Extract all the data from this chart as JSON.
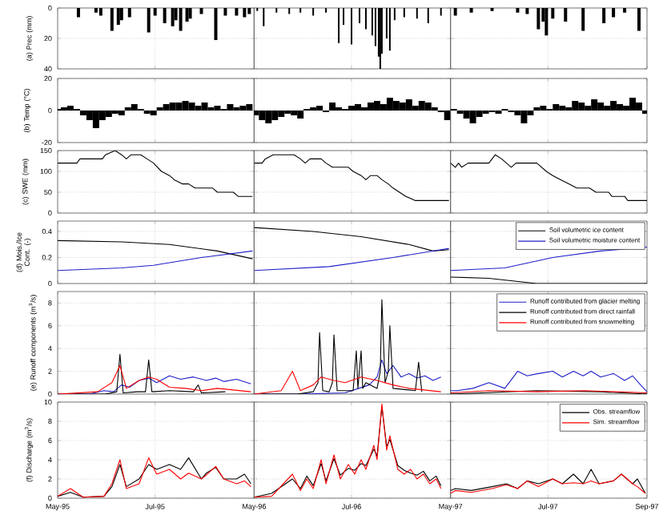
{
  "chart_data": [
    {
      "type": "bar",
      "ylabel": "(a) Prec (mm)",
      "color": "#000000",
      "grid": true,
      "tick_labels": "y",
      "xlim": [
        "1995-05-01",
        "1995-09-01"
      ],
      "xticks": [
        {
          "value": "1995-05-01",
          "label": null
        },
        {
          "value": "1995-07-01",
          "label": null
        }
      ],
      "ylim": [
        40,
        0
      ],
      "yticks": [
        0,
        20,
        40
      ],
      "x": [
        "1995-05-14",
        "1995-05-25",
        "1995-05-28",
        "1995-06-04",
        "1995-06-08",
        "1995-06-10",
        "1995-06-15",
        "1995-06-27",
        "1995-07-01",
        "1995-07-07",
        "1995-07-12",
        "1995-07-14",
        "1995-07-17",
        "1995-07-21",
        "1995-07-23",
        "1995-07-30",
        "1995-08-08",
        "1995-08-14",
        "1995-08-21",
        "1995-08-26",
        "1995-08-29"
      ],
      "values": [
        6,
        3,
        5,
        15,
        11,
        8,
        6,
        16,
        5,
        10,
        12,
        8,
        15,
        9,
        7,
        4,
        21,
        5,
        5,
        6,
        4
      ]
    },
    {
      "type": "bar",
      "color": "#000000",
      "grid": true,
      "tick_labels": false,
      "xlim": [
        "1996-05-01",
        "1996-09-01"
      ],
      "xticks": [
        {
          "value": "1996-05-01",
          "label": null
        },
        {
          "value": "1996-07-01",
          "label": null
        }
      ],
      "ylim": [
        40,
        0
      ],
      "yticks": [
        0,
        20,
        40
      ],
      "x": [
        "1996-05-03",
        "1996-05-07",
        "1996-05-15",
        "1996-05-23",
        "1996-05-30",
        "1996-06-07",
        "1996-06-15",
        "1996-06-23",
        "1996-06-26",
        "1996-07-01",
        "1996-07-06",
        "1996-07-10",
        "1996-07-14",
        "1996-07-16",
        "1996-07-18",
        "1996-07-19",
        "1996-07-20",
        "1996-07-23",
        "1996-07-25",
        "1996-07-28",
        "1996-08-03",
        "1996-08-11",
        "1996-08-18",
        "1996-08-26"
      ],
      "values": [
        2,
        12,
        3,
        4,
        3,
        5,
        3,
        23,
        11,
        24,
        10,
        14,
        18,
        25,
        32,
        40,
        30,
        20,
        28,
        8,
        6,
        7,
        10,
        5
      ]
    },
    {
      "type": "bar",
      "color": "#000000",
      "grid": true,
      "tick_labels": false,
      "xlim": [
        "1997-05-01",
        "1997-09-01"
      ],
      "xticks": [
        {
          "value": "1997-05-01",
          "label": null
        },
        {
          "value": "1997-07-01",
          "label": null
        },
        {
          "value": "1997-09-01",
          "label": null
        }
      ],
      "ylim": [
        40,
        0
      ],
      "yticks": [
        0,
        20,
        40
      ],
      "x": [
        "1997-05-04",
        "1997-05-14",
        "1997-05-27",
        "1997-06-12",
        "1997-06-18",
        "1997-06-25",
        "1997-06-28",
        "1997-06-30",
        "1997-07-04",
        "1997-07-12",
        "1997-07-23",
        "1997-08-05",
        "1997-08-11",
        "1997-08-18",
        "1997-08-27"
      ],
      "values": [
        5,
        3,
        2,
        3,
        4,
        14,
        9,
        18,
        7,
        9,
        15,
        10,
        6,
        3,
        15
      ]
    },
    {
      "type": "bar",
      "ylabel": "(b) Temp (°C)",
      "color": "#000000",
      "grid": true,
      "tick_labels": "y",
      "xlim": [
        "1995-05-01",
        "1995-09-01"
      ],
      "xticks": [
        {
          "value": "1995-05-01",
          "label": null
        },
        {
          "value": "1995-07-01",
          "label": null
        }
      ],
      "ylim": [
        -20,
        20
      ],
      "yticks": [
        -20,
        0,
        20
      ],
      "x": [
        "1995-05-01",
        "1995-05-05",
        "1995-05-09",
        "1995-05-13",
        "1995-05-17",
        "1995-05-21",
        "1995-05-25",
        "1995-05-29",
        "1995-06-02",
        "1995-06-06",
        "1995-06-10",
        "1995-06-14",
        "1995-06-18",
        "1995-06-22",
        "1995-06-26",
        "1995-06-30",
        "1995-07-04",
        "1995-07-08",
        "1995-07-12",
        "1995-07-16",
        "1995-07-20",
        "1995-07-24",
        "1995-07-28",
        "1995-08-01",
        "1995-08-05",
        "1995-08-09",
        "1995-08-13",
        "1995-08-17",
        "1995-08-21",
        "1995-08-25",
        "1995-08-29"
      ],
      "values": [
        1,
        2,
        3,
        1,
        -3,
        -6,
        -11,
        -6,
        -4,
        -2,
        -3,
        2,
        4,
        1,
        -2,
        -3,
        2,
        4,
        5,
        5,
        6,
        5,
        3,
        5,
        2,
        3,
        1,
        4,
        2,
        3,
        4
      ]
    },
    {
      "type": "bar",
      "color": "#000000",
      "grid": true,
      "tick_labels": false,
      "xlim": [
        "1996-05-01",
        "1996-09-01"
      ],
      "xticks": [
        {
          "value": "1996-05-01",
          "label": null
        },
        {
          "value": "1996-07-01",
          "label": null
        }
      ],
      "ylim": [
        -20,
        20
      ],
      "yticks": [
        -20,
        0,
        20
      ],
      "x": [
        "1996-05-02",
        "1996-05-06",
        "1996-05-10",
        "1996-05-14",
        "1996-05-18",
        "1996-05-22",
        "1996-05-26",
        "1996-05-30",
        "1996-06-03",
        "1996-06-07",
        "1996-06-11",
        "1996-06-15",
        "1996-06-19",
        "1996-06-23",
        "1996-06-27",
        "1996-07-01",
        "1996-07-05",
        "1996-07-09",
        "1996-07-13",
        "1996-07-17",
        "1996-07-21",
        "1996-07-25",
        "1996-07-29",
        "1996-08-02",
        "1996-08-06",
        "1996-08-10",
        "1996-08-14",
        "1996-08-18",
        "1996-08-22",
        "1996-08-26",
        "1996-08-30"
      ],
      "values": [
        -3,
        -6,
        -8,
        -6,
        -4,
        -2,
        -3,
        -5,
        1,
        2,
        3,
        -1,
        5,
        2,
        1,
        3,
        4,
        2,
        5,
        6,
        4,
        8,
        6,
        5,
        7,
        3,
        6,
        5,
        2,
        -1,
        -6
      ]
    },
    {
      "type": "bar",
      "color": "#000000",
      "grid": true,
      "tick_labels": false,
      "xlim": [
        "1997-05-01",
        "1997-09-01"
      ],
      "xticks": [
        {
          "value": "1997-05-01",
          "label": null
        },
        {
          "value": "1997-07-01",
          "label": null
        },
        {
          "value": "1997-09-01",
          "label": null
        }
      ],
      "ylim": [
        -20,
        20
      ],
      "yticks": [
        -20,
        0,
        20
      ],
      "x": [
        "1997-05-03",
        "1997-05-07",
        "1997-05-11",
        "1997-05-15",
        "1997-05-19",
        "1997-05-23",
        "1997-05-27",
        "1997-05-31",
        "1997-06-04",
        "1997-06-08",
        "1997-06-12",
        "1997-06-16",
        "1997-06-20",
        "1997-06-24",
        "1997-06-28",
        "1997-07-02",
        "1997-07-06",
        "1997-07-10",
        "1997-07-14",
        "1997-07-18",
        "1997-07-22",
        "1997-07-26",
        "1997-07-30",
        "1997-08-03",
        "1997-08-07",
        "1997-08-11",
        "1997-08-15",
        "1997-08-19",
        "1997-08-23",
        "1997-08-27",
        "1997-08-31"
      ],
      "values": [
        1,
        -2,
        -5,
        -8,
        -4,
        -2,
        -1,
        -2,
        1,
        -1,
        -3,
        -8,
        -3,
        2,
        3,
        1,
        4,
        3,
        2,
        6,
        5,
        3,
        7,
        5,
        3,
        6,
        4,
        3,
        8,
        5,
        -2
      ]
    },
    {
      "type": "line",
      "ylabel": "(c) SWE (mm)",
      "grid": true,
      "tick_labels": "y",
      "xlim": [
        "1995-05-01",
        "1995-09-01"
      ],
      "xticks": [
        {
          "value": "1995-05-01",
          "label": null
        },
        {
          "value": "1995-07-01",
          "label": null
        }
      ],
      "ylim": [
        0,
        150
      ],
      "yticks": [
        0,
        50,
        100,
        150
      ],
      "series": [
        {
          "color": "#000000",
          "x": [
            "1995-05-01",
            "1995-05-13",
            "1995-05-15",
            "1995-05-29",
            "1995-05-31",
            "1995-06-06",
            "1995-06-10",
            "1995-06-13",
            "1995-06-16",
            "1995-06-22",
            "1995-06-26",
            "1995-06-30",
            "1995-07-05",
            "1995-07-10",
            "1995-07-13",
            "1995-07-18",
            "1995-07-22",
            "1995-07-26",
            "1995-08-06",
            "1995-08-09",
            "1995-08-19",
            "1995-08-22",
            "1995-08-31"
          ],
          "values": [
            120,
            120,
            130,
            130,
            140,
            150,
            140,
            130,
            140,
            140,
            130,
            120,
            100,
            90,
            80,
            70,
            70,
            60,
            60,
            50,
            50,
            40,
            40
          ]
        }
      ]
    },
    {
      "type": "line",
      "grid": true,
      "tick_labels": false,
      "xlim": [
        "1996-05-01",
        "1996-09-01"
      ],
      "xticks": [
        {
          "value": "1996-05-01",
          "label": null
        },
        {
          "value": "1996-07-01",
          "label": null
        }
      ],
      "ylim": [
        0,
        150
      ],
      "yticks": [
        0,
        50,
        100,
        150
      ],
      "series": [
        {
          "color": "#000000",
          "x": [
            "1996-05-01",
            "1996-05-06",
            "1996-05-08",
            "1996-05-13",
            "1996-05-26",
            "1996-05-30",
            "1996-06-02",
            "1996-06-05",
            "1996-06-12",
            "1996-06-15",
            "1996-06-19",
            "1996-06-29",
            "1996-07-02",
            "1996-07-07",
            "1996-07-10",
            "1996-07-13",
            "1996-07-17",
            "1996-07-20",
            "1996-07-24",
            "1996-07-27",
            "1996-07-31",
            "1996-08-04",
            "1996-08-10",
            "1996-08-31"
          ],
          "values": [
            120,
            120,
            130,
            140,
            140,
            130,
            120,
            130,
            130,
            120,
            110,
            110,
            100,
            90,
            80,
            90,
            90,
            80,
            70,
            60,
            50,
            40,
            30,
            30
          ]
        }
      ]
    },
    {
      "type": "line",
      "grid": true,
      "tick_labels": false,
      "xlim": [
        "1997-05-01",
        "1997-09-01"
      ],
      "xticks": [
        {
          "value": "1997-05-01",
          "label": null
        },
        {
          "value": "1997-07-01",
          "label": null
        },
        {
          "value": "1997-09-01",
          "label": null
        }
      ],
      "ylim": [
        0,
        150
      ],
      "yticks": [
        0,
        50,
        100,
        150
      ],
      "series": [
        {
          "color": "#000000",
          "x": [
            "1997-05-01",
            "1997-05-04",
            "1997-05-06",
            "1997-05-08",
            "1997-05-12",
            "1997-05-25",
            "1997-05-29",
            "1997-06-02",
            "1997-06-05",
            "1997-06-08",
            "1997-06-11",
            "1997-06-24",
            "1997-06-27",
            "1997-06-30",
            "1997-07-04",
            "1997-07-09",
            "1997-07-14",
            "1997-07-19",
            "1997-07-27",
            "1997-07-31",
            "1997-08-08",
            "1997-08-10",
            "1997-08-18",
            "1997-08-20",
            "1997-09-01"
          ],
          "values": [
            120,
            110,
            120,
            110,
            120,
            120,
            140,
            130,
            120,
            110,
            120,
            120,
            110,
            100,
            90,
            80,
            70,
            60,
            60,
            50,
            50,
            40,
            40,
            30,
            30
          ]
        }
      ]
    },
    {
      "type": "line",
      "ylabel": "(d) Mois./Ice Cont. (-)",
      "grid": true,
      "tick_labels": "y",
      "xlim": [
        "1995-05-01",
        "1995-09-01"
      ],
      "xticks": [
        {
          "value": "1995-05-01",
          "label": null
        },
        {
          "value": "1995-07-01",
          "label": null
        }
      ],
      "ylim": [
        0,
        0.48
      ],
      "yticks": [
        0,
        0.2,
        0.4
      ],
      "series": [
        {
          "color": "#000000",
          "x": [
            "1995-05-01",
            "1995-06-10",
            "1995-07-10",
            "1995-08-09",
            "1995-08-31"
          ],
          "values": [
            0.33,
            0.32,
            0.3,
            0.25,
            0.19
          ]
        },
        {
          "color": "#1f1fc8",
          "x": [
            "1995-05-01",
            "1995-06-10",
            "1995-06-30",
            "1995-07-30",
            "1995-08-31"
          ],
          "values": [
            0.1,
            0.12,
            0.14,
            0.2,
            0.25
          ]
        }
      ]
    },
    {
      "type": "line",
      "grid": true,
      "tick_labels": false,
      "xlim": [
        "1996-05-01",
        "1996-09-01"
      ],
      "xticks": [
        {
          "value": "1996-05-01",
          "label": null
        },
        {
          "value": "1996-07-01",
          "label": null
        }
      ],
      "ylim": [
        0,
        0.48
      ],
      "yticks": [
        0,
        0.2,
        0.4
      ],
      "series": [
        {
          "color": "#000000",
          "x": [
            "1996-05-01",
            "1996-06-07",
            "1996-07-07",
            "1996-08-06",
            "1996-08-21",
            "1996-08-31"
          ],
          "values": [
            0.43,
            0.4,
            0.36,
            0.3,
            0.25,
            0.26
          ]
        },
        {
          "color": "#1f1fc8",
          "x": [
            "1996-05-01",
            "1996-06-17",
            "1996-07-27",
            "1996-08-26",
            "1996-08-31"
          ],
          "values": [
            0.1,
            0.13,
            0.2,
            0.26,
            0.27
          ]
        }
      ]
    },
    {
      "type": "line",
      "grid": true,
      "tick_labels": false,
      "legend": "top right",
      "xlim": [
        "1997-05-01",
        "1997-09-01"
      ],
      "xticks": [
        {
          "value": "1997-05-01",
          "label": null
        },
        {
          "value": "1997-07-01",
          "label": null
        },
        {
          "value": "1997-09-01",
          "label": null
        }
      ],
      "ylim": [
        0,
        0.48
      ],
      "yticks": [
        0,
        0.2,
        0.4
      ],
      "series": [
        {
          "name": "Soil volumetric ice content",
          "color": "#000000",
          "x": [
            "1997-05-01",
            "1997-05-25",
            "1997-06-24",
            "1997-09-01"
          ],
          "values": [
            0.05,
            0.04,
            0,
            0
          ]
        },
        {
          "name": "Soil volumetric moisture content",
          "color": "#1f1fc8",
          "x": [
            "1997-05-01",
            "1997-06-04",
            "1997-07-04",
            "1997-08-03",
            "1997-09-01"
          ],
          "values": [
            0.1,
            0.12,
            0.2,
            0.25,
            0.28
          ]
        }
      ]
    },
    {
      "type": "line",
      "ylabel": "(e) Runoff components (m$^{3}$/s)",
      "grid": true,
      "tick_labels": "y",
      "xlim": [
        "1995-05-01",
        "1995-09-01"
      ],
      "xticks": [
        {
          "value": "1995-05-01",
          "label": null
        },
        {
          "value": "1995-07-01",
          "label": null
        }
      ],
      "ylim": [
        0,
        9
      ],
      "yticks": [
        0,
        2,
        4,
        6,
        8
      ],
      "series": [
        {
          "color": "#1f1fc8",
          "x": [
            "1995-05-01",
            "1995-05-21",
            "1995-05-30",
            "1995-06-05",
            "1995-06-10",
            "1995-06-15",
            "1995-06-21",
            "1995-06-27",
            "1995-07-02",
            "1995-07-10",
            "1995-07-17",
            "1995-07-25",
            "1995-08-02",
            "1995-08-08",
            "1995-08-13",
            "1995-08-21",
            "1995-08-30"
          ],
          "values": [
            0,
            0,
            0.3,
            0.2,
            0.8,
            0.6,
            1.2,
            1.4,
            1.0,
            1.6,
            1.3,
            1.5,
            1.2,
            1.4,
            1.1,
            1.3,
            0.9
          ]
        },
        {
          "color": "#000000",
          "x": [
            "1995-05-01",
            "1995-05-31",
            "1995-06-07",
            "1995-06-09",
            "1995-06-11",
            "1995-06-20",
            "1995-06-25",
            "1995-06-27",
            "1995-06-29",
            "1995-07-10",
            "1995-07-25",
            "1995-07-28",
            "1995-07-30",
            "1995-08-14"
          ],
          "values": [
            0,
            0,
            0.2,
            3.5,
            0.1,
            0.2,
            0.2,
            3.0,
            0.2,
            0.3,
            0.2,
            0.8,
            0.1,
            0.2
          ]
        },
        {
          "color": "#ff0000",
          "x": [
            "1995-05-01",
            "1995-05-26",
            "1995-06-04",
            "1995-06-09",
            "1995-06-13",
            "1995-06-21",
            "1995-06-27",
            "1995-07-02",
            "1995-07-10",
            "1995-07-20",
            "1995-07-30",
            "1995-08-09",
            "1995-08-30"
          ],
          "values": [
            0,
            0.2,
            1.0,
            2.5,
            0.5,
            1.2,
            1.5,
            1.3,
            0.6,
            0.5,
            0.3,
            0.5,
            0.2
          ]
        }
      ]
    },
    {
      "type": "line",
      "grid": true,
      "tick_labels": false,
      "xlim": [
        "1996-05-01",
        "1996-09-01"
      ],
      "xticks": [
        {
          "value": "1996-05-01",
          "label": null
        },
        {
          "value": "1996-07-01",
          "label": null
        }
      ],
      "ylim": [
        0,
        9
      ],
      "yticks": [
        0,
        2,
        4,
        6,
        8
      ],
      "series": [
        {
          "color": "#1f1fc8",
          "x": [
            "1996-05-01",
            "1996-05-28",
            "1996-06-27",
            "1996-07-12",
            "1996-07-17",
            "1996-07-20",
            "1996-07-23",
            "1996-07-27",
            "1996-08-01",
            "1996-08-06",
            "1996-08-11",
            "1996-08-16",
            "1996-08-21",
            "1996-08-26"
          ],
          "values": [
            0,
            0,
            0.1,
            0.8,
            1.5,
            3.0,
            1.8,
            2.5,
            1.5,
            1.8,
            1.4,
            1.6,
            1.2,
            1.5
          ]
        },
        {
          "color": "#000000",
          "x": [
            "1996-05-01",
            "1996-05-28",
            "1996-06-07",
            "1996-06-10",
            "1996-06-11",
            "1996-06-13",
            "1996-06-17",
            "1996-06-19",
            "1996-06-20",
            "1996-06-22",
            "1996-07-02",
            "1996-07-04",
            "1996-07-05",
            "1996-07-07",
            "1996-07-08",
            "1996-07-10",
            "1996-07-17",
            "1996-07-19",
            "1996-07-20",
            "1996-07-22",
            "1996-07-24",
            "1996-07-25",
            "1996-07-27",
            "1996-08-10",
            "1996-08-12",
            "1996-08-14"
          ],
          "values": [
            0,
            0,
            0.2,
            1,
            5.4,
            0.3,
            0.2,
            1,
            5.2,
            0.3,
            0.3,
            3.8,
            0.5,
            3.8,
            0.5,
            1.0,
            0.5,
            2,
            8.3,
            1.0,
            2,
            6.0,
            0.5,
            0.3,
            2.8,
            0.2
          ]
        },
        {
          "color": "#ff0000",
          "x": [
            "1996-05-01",
            "1996-05-18",
            "1996-05-25",
            "1996-05-30",
            "1996-06-07",
            "1996-06-12",
            "1996-06-20",
            "1996-06-27",
            "1996-07-07",
            "1996-07-17",
            "1996-07-27",
            "1996-08-06",
            "1996-08-26"
          ],
          "values": [
            0,
            0.3,
            2.0,
            0.3,
            0.8,
            1.5,
            1.2,
            1.0,
            1.5,
            1.2,
            0.8,
            0.5,
            0.2
          ]
        }
      ]
    },
    {
      "type": "line",
      "grid": true,
      "tick_labels": false,
      "legend": "top right",
      "xlim": [
        "1997-05-01",
        "1997-09-01"
      ],
      "xticks": [
        {
          "value": "1997-05-01",
          "label": null
        },
        {
          "value": "1997-07-01",
          "label": null
        },
        {
          "value": "1997-09-01",
          "label": null
        }
      ],
      "ylim": [
        0,
        9
      ],
      "yticks": [
        0,
        2,
        4,
        6,
        8
      ],
      "series": [
        {
          "name": "Runoff contributed from glacier melting",
          "color": "#1f1fc8",
          "x": [
            "1997-05-01",
            "1997-05-05",
            "1997-05-15",
            "1997-05-25",
            "1997-06-04",
            "1997-06-12",
            "1997-06-18",
            "1997-06-25",
            "1997-07-04",
            "1997-07-10",
            "1997-07-17",
            "1997-07-23",
            "1997-07-28",
            "1997-08-03",
            "1997-08-11",
            "1997-08-18",
            "1997-08-23",
            "1997-08-28",
            "1997-09-01"
          ],
          "values": [
            0.3,
            0.3,
            0.5,
            1.0,
            0.5,
            2.0,
            1.6,
            1.8,
            2.0,
            1.5,
            2.0,
            1.6,
            2.0,
            1.5,
            1.8,
            1.2,
            1.6,
            0.8,
            0.2
          ]
        },
        {
          "name": "Runoff contributed from direct rainfall",
          "color": "#000000",
          "x": [
            "1997-05-01",
            "1997-06-24",
            "1997-08-03",
            "1997-09-01"
          ],
          "values": [
            0,
            0.3,
            0.2,
            0
          ]
        },
        {
          "name": "Runoff contributed from snowmelting",
          "color": "#ff0000",
          "x": [
            "1997-05-01",
            "1997-05-25",
            "1997-06-24",
            "1997-07-24",
            "1997-09-01"
          ],
          "values": [
            0.1,
            0.3,
            0.2,
            0.3,
            0.1
          ]
        }
      ]
    },
    {
      "type": "line",
      "ylabel": "(f) Discharge (m$^{3}$/s)",
      "grid": true,
      "xlim": [
        "1995-05-01",
        "1995-09-01"
      ],
      "xticks": [
        {
          "value": "1995-05-01",
          "label": "May-95"
        },
        {
          "value": "1995-07-01",
          "label": "Jul-95"
        }
      ],
      "ylim": [
        0,
        10
      ],
      "yticks": [
        0,
        2,
        4,
        6,
        8,
        10
      ],
      "x": [
        "1995-05-01",
        "1995-05-09",
        "1995-05-17",
        "1995-05-30",
        "1995-06-04",
        "1995-06-09",
        "1995-06-13",
        "1995-06-21",
        "1995-06-27",
        "1995-07-02",
        "1995-07-10",
        "1995-07-17",
        "1995-07-22",
        "1995-07-30",
        "1995-08-02",
        "1995-08-08",
        "1995-08-13",
        "1995-08-21",
        "1995-08-26",
        "1995-08-30"
      ],
      "series": [
        {
          "color": "#000000",
          "values": [
            0.2,
            0.6,
            0.1,
            0.2,
            1.2,
            3.5,
            1.2,
            2.0,
            3.5,
            3.0,
            3.5,
            3.0,
            4.2,
            2.0,
            2.6,
            3.2,
            2.0,
            2.0,
            2.5,
            1.5
          ]
        },
        {
          "color": "#ff0000",
          "values": [
            0.2,
            1.0,
            0.1,
            0.2,
            1.5,
            4.0,
            1.0,
            1.5,
            4.2,
            2.5,
            3.0,
            2.0,
            2.6,
            2.0,
            2.4,
            3.3,
            2.0,
            1.5,
            1.8,
            1.2
          ]
        }
      ]
    },
    {
      "type": "line",
      "grid": true,
      "tick_labels": "x",
      "xlim": [
        "1996-05-01",
        "1996-09-01"
      ],
      "xticks": [
        {
          "value": "1996-05-01",
          "label": "May-96"
        },
        {
          "value": "1996-07-01",
          "label": "Jul-96"
        }
      ],
      "ylim": [
        0,
        10
      ],
      "yticks": [
        0,
        2,
        4,
        6,
        8,
        10
      ],
      "x": [
        "1996-05-01",
        "1996-05-12",
        "1996-05-25",
        "1996-05-30",
        "1996-06-03",
        "1996-06-07",
        "1996-06-12",
        "1996-06-15",
        "1996-06-20",
        "1996-06-24",
        "1996-06-29",
        "1996-07-03",
        "1996-07-07",
        "1996-07-10",
        "1996-07-15",
        "1996-07-17",
        "1996-07-20",
        "1996-07-23",
        "1996-07-25",
        "1996-07-30",
        "1996-08-03",
        "1996-08-07",
        "1996-08-11",
        "1996-08-15",
        "1996-08-19",
        "1996-08-23",
        "1996-08-26"
      ],
      "series": [
        {
          "color": "#000000",
          "values": [
            0.1,
            0.5,
            2.0,
            1.0,
            2.3,
            1.3,
            3.6,
            1.8,
            4.1,
            2.4,
            3.1,
            2.9,
            3.6,
            3.4,
            5.1,
            4.4,
            9.5,
            5.4,
            6.1,
            3.4,
            2.9,
            2.6,
            2.4,
            2.8,
            1.8,
            2.3,
            1.3
          ]
        },
        {
          "color": "#ff0000",
          "values": [
            0.1,
            0.2,
            2.5,
            0.8,
            2.0,
            1.0,
            4.0,
            1.5,
            4.5,
            2.0,
            3.5,
            2.5,
            4.0,
            3.0,
            5.5,
            4.0,
            9.8,
            5.0,
            6.5,
            3.0,
            2.5,
            3.0,
            2.0,
            2.5,
            1.5,
            2.0,
            1.0
          ]
        }
      ]
    },
    {
      "type": "line",
      "grid": true,
      "tick_labels": "x",
      "legend": "top right",
      "xlim": [
        "1997-05-01",
        "1997-09-01"
      ],
      "xticks": [
        {
          "value": "1997-05-01",
          "label": "May-97"
        },
        {
          "value": "1997-07-01",
          "label": "Jul-97"
        },
        {
          "value": "1997-09-01",
          "label": "Sep-97"
        }
      ],
      "ylim": [
        0,
        10
      ],
      "yticks": [
        0,
        2,
        4,
        6,
        8,
        10
      ],
      "x": [
        "1997-05-01",
        "1997-05-04",
        "1997-05-14",
        "1997-05-27",
        "1997-06-05",
        "1997-06-12",
        "1997-06-18",
        "1997-06-25",
        "1997-07-04",
        "1997-07-10",
        "1997-07-17",
        "1997-07-23",
        "1997-07-28",
        "1997-08-02",
        "1997-08-11",
        "1997-08-16",
        "1997-08-23",
        "1997-08-26",
        "1997-08-31"
      ],
      "series": [
        {
          "name": "Obs. streamflow",
          "color": "#000000",
          "values": [
            0.8,
            1.0,
            0.8,
            1.2,
            1.5,
            1.0,
            1.8,
            1.5,
            2.0,
            1.5,
            2.5,
            1.5,
            3.0,
            1.5,
            1.8,
            2.5,
            1.5,
            2.0,
            0.5
          ]
        },
        {
          "name": "Sim. streamflow",
          "color": "#ff0000",
          "values": [
            0.5,
            0.8,
            0.6,
            1.0,
            1.4,
            1.0,
            1.8,
            1.2,
            2.0,
            1.5,
            1.6,
            1.5,
            1.8,
            1.5,
            1.8,
            2.5,
            1.5,
            1.2,
            0.5
          ]
        }
      ]
    }
  ]
}
